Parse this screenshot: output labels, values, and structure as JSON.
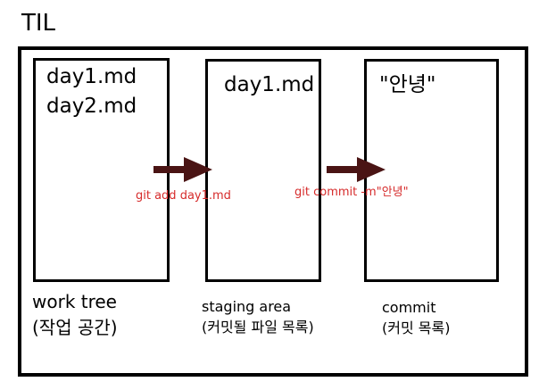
{
  "title": "TIL",
  "stages": [
    {
      "name": "work tree",
      "subtitle": "(작업 공간)",
      "files": [
        "day1.md",
        "day2.md"
      ]
    },
    {
      "name": "staging area",
      "subtitle": "(커밋될 파일 목록)",
      "files": [
        "day1.md"
      ]
    },
    {
      "name": "commit",
      "subtitle": "(커밋 목록)",
      "files": [
        "\"안녕\""
      ]
    }
  ],
  "commands": [
    "git add day1.md",
    "git commit -m\"안녕\""
  ],
  "colors": {
    "arrow": "#4a1414",
    "command_text": "#d62b2b",
    "border": "#000000"
  }
}
